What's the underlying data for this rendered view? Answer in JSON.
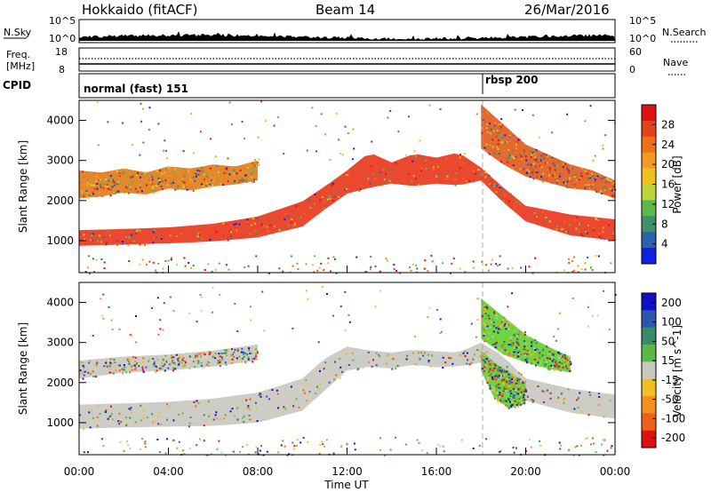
{
  "header": {
    "station": "Hokkaido (fitACF)",
    "beam": "Beam 14",
    "date": "26/Mar/2016"
  },
  "noise_panel": {
    "left_label": "N.Sky",
    "right_label": "N.Search",
    "left_ticks": [
      "10^5",
      "10^0"
    ],
    "right_ticks": [
      "10^5",
      "10^0"
    ]
  },
  "freq_panel": {
    "label_line1": "Freq.",
    "label_line2": "[MHz]",
    "left_ticks": [
      "18",
      "8"
    ],
    "right_label": "Nave",
    "right_ticks": [
      "60",
      "0"
    ]
  },
  "cpid_panel": {
    "label": "CPID",
    "modes": [
      {
        "label": "normal (fast) 151",
        "start_hour": 0
      },
      {
        "label": "rbsp 200",
        "start_hour": 18
      }
    ]
  },
  "chart_data": [
    {
      "type": "heatmap",
      "title": "Power",
      "ylabel": "Slant Range [km]",
      "xlabel": "Time UT",
      "xlim": [
        0,
        24
      ],
      "ylim": [
        200,
        4500
      ],
      "y_ticks": [
        "1000",
        "2000",
        "3000",
        "4000"
      ],
      "x_ticks": [
        "00:00",
        "04:00",
        "08:00",
        "12:00",
        "16:00",
        "20:00",
        "00:00"
      ],
      "colorbar": {
        "label": "Power [dB]",
        "ticks": [
          "4",
          "8",
          "12",
          "16",
          "20",
          "24",
          "28"
        ],
        "colors": [
          "#1020e0",
          "#2b5fb0",
          "#3f8f6a",
          "#5cb84a",
          "#bcd63a",
          "#f0c020",
          "#f59a20",
          "#f07018",
          "#e84018",
          "#e01010"
        ]
      },
      "bands": [
        {
          "name": "lower echo",
          "t": [
            0,
            2,
            4,
            6,
            8,
            10,
            11,
            12,
            13,
            14,
            15,
            16,
            17,
            18,
            19,
            20,
            22,
            24
          ],
          "lo": [
            870,
            900,
            930,
            980,
            1080,
            1350,
            1780,
            2170,
            2320,
            2420,
            2360,
            2420,
            2380,
            2500,
            1950,
            1480,
            1130,
            1000
          ],
          "hi": [
            1260,
            1290,
            1330,
            1420,
            1600,
            1980,
            2350,
            2750,
            3200,
            2950,
            3170,
            3070,
            3200,
            2820,
            2320,
            1870,
            1650,
            1530
          ],
          "color": "#e8351a"
        },
        {
          "name": "upper echo",
          "t": [
            0,
            1,
            2,
            3,
            4,
            5,
            6,
            7,
            8
          ],
          "lo": [
            2050,
            2100,
            2200,
            2150,
            2300,
            2250,
            2350,
            2400,
            2500
          ],
          "hi": [
            2750,
            2700,
            2800,
            2700,
            2850,
            2800,
            2900,
            2850,
            3000
          ],
          "color": "#e07b16"
        },
        {
          "name": "rbsp echo",
          "t": [
            18,
            19,
            20,
            21,
            22,
            23,
            24
          ],
          "lo": [
            3300,
            2900,
            2600,
            2450,
            2300,
            2250,
            2050
          ],
          "hi": [
            4400,
            3900,
            3400,
            3150,
            2900,
            2750,
            2500
          ],
          "color": "#e4561a"
        }
      ]
    },
    {
      "type": "heatmap",
      "title": "Velocity",
      "ylabel": "Slant Range [km]",
      "xlabel": "Time UT",
      "xlim": [
        0,
        24
      ],
      "ylim": [
        200,
        4500
      ],
      "y_ticks": [
        "1000",
        "2000",
        "3000",
        "4000"
      ],
      "x_ticks": [
        "00:00",
        "04:00",
        "08:00",
        "12:00",
        "16:00",
        "20:00",
        "00:00"
      ],
      "colorbar": {
        "label": "Velocity [m s^-1]",
        "ticks": [
          "200",
          "100",
          "50",
          "15",
          "-15",
          "-50",
          "-100",
          "-200"
        ],
        "colors": [
          "#1010c8",
          "#2b57b0",
          "#3a8a6a",
          "#58b848",
          "#c8c8c0",
          "#f0c020",
          "#f59020",
          "#f06018",
          "#e01010"
        ]
      },
      "bands": [
        {
          "name": "ground scatter",
          "t": [
            0,
            2,
            4,
            6,
            8,
            10,
            11,
            12,
            13,
            14,
            15,
            16,
            17,
            18,
            19,
            20,
            22,
            24
          ],
          "lo": [
            850,
            880,
            900,
            920,
            1000,
            1300,
            1800,
            2300,
            2400,
            2350,
            2450,
            2380,
            2400,
            2500,
            2000,
            1550,
            1250,
            1100
          ],
          "hi": [
            1450,
            1480,
            1520,
            1600,
            1750,
            2100,
            2600,
            2900,
            2800,
            2750,
            2820,
            2780,
            2750,
            3000,
            2650,
            2100,
            1850,
            1700
          ],
          "color": "#c8c8c0"
        },
        {
          "name": "upper grey",
          "t": [
            0,
            2,
            4,
            6,
            8
          ],
          "lo": [
            2100,
            2250,
            2300,
            2400,
            2550
          ],
          "hi": [
            2550,
            2650,
            2700,
            2800,
            2950
          ],
          "color": "#c8c8c0"
        },
        {
          "name": "green arc upper",
          "t": [
            18,
            19,
            20,
            21,
            22
          ],
          "lo": [
            3100,
            2700,
            2500,
            2350,
            2250
          ],
          "hi": [
            4100,
            3650,
            3200,
            2900,
            2650
          ],
          "color": "#5dd02a"
        },
        {
          "name": "green arc lower",
          "t": [
            18,
            18.6,
            19.3,
            20
          ],
          "lo": [
            2300,
            1600,
            1350,
            1500
          ],
          "hi": [
            2800,
            2500,
            2250,
            2000
          ],
          "color": "#5dd02a"
        }
      ]
    }
  ],
  "axes": {
    "xlabel": "Time UT"
  }
}
